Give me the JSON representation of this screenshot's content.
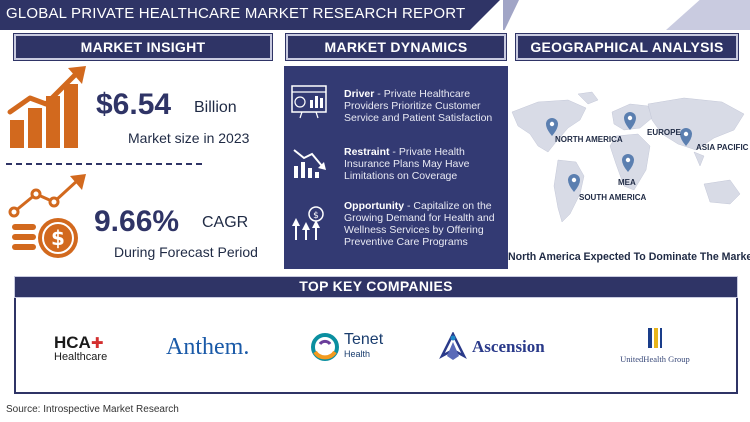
{
  "header": {
    "title": "GLOBAL PRIVATE HEALTHCARE MARKET RESEARCH REPORT"
  },
  "sections": {
    "market_insight": "MARKET INSIGHT",
    "market_dynamics": "MARKET DYNAMICS",
    "geographical_analysis": "GEOGRAPHICAL ANALYSIS",
    "top_key_companies": "TOP KEY COMPANIES"
  },
  "insight": {
    "market_size_value": "$6.54",
    "market_size_unit": "Billion",
    "market_size_label": "Market size in 2023",
    "cagr_value": "9.66%",
    "cagr_unit": "CAGR",
    "cagr_label": "During Forecast Period"
  },
  "dynamics": [
    {
      "type": "Driver",
      "text": " - Private Healthcare Providers Prioritize Customer Service and Patient Satisfaction",
      "icon": "dashboard-icon"
    },
    {
      "type": "Restraint",
      "text": " - Private Health Insurance Plans May Have Limitations on Coverage",
      "icon": "declining-chart-icon"
    },
    {
      "type": "Opportunity",
      "text": " - Capitalize on the Growing Demand for Health and Wellness Services by Offering Preventive Care Programs",
      "icon": "growth-coin-icon"
    }
  ],
  "geo": {
    "regions": [
      "NORTH AMERICA",
      "EUROPE",
      "ASIA PACIFIC",
      "MEA",
      "SOUTH AMERICA"
    ],
    "caption": "North America Expected To Dominate The Market"
  },
  "companies": {
    "hca_main": "HCA",
    "hca_sub": "Healthcare",
    "anthem": "Anthem.",
    "tenet_main": "Tenet",
    "tenet_sub": "Health",
    "ascension": "Ascension",
    "unitedhealth": "UnitedHealth Group"
  },
  "footer": {
    "source": "Source: Introspective Market Research"
  },
  "colors": {
    "navy": "#2f3466",
    "panel": "#333a73",
    "orange": "#d2691e",
    "map_gray": "#d8dbe6",
    "pin": "#5b7fb0"
  }
}
